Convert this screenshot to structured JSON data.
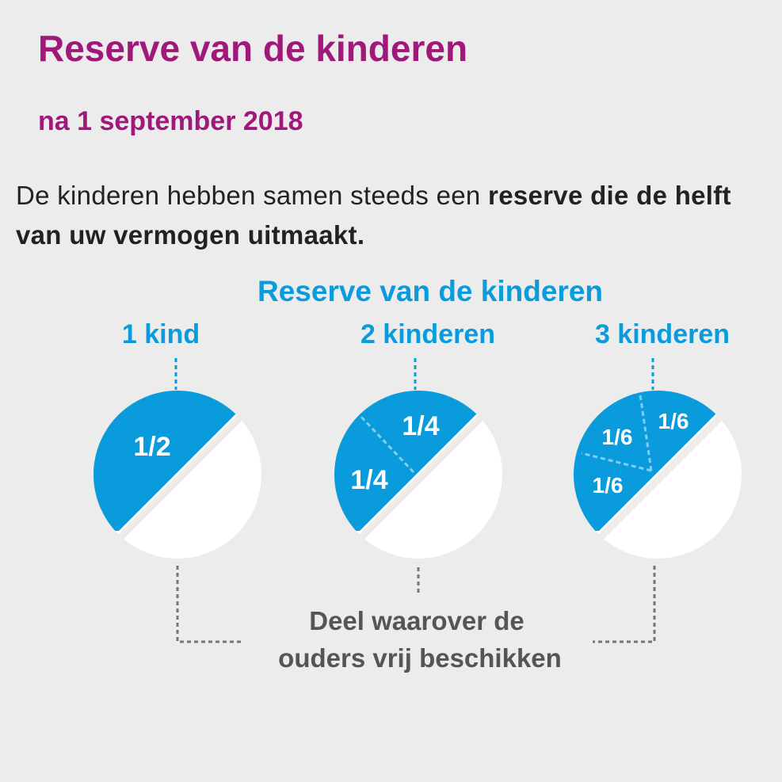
{
  "header": {
    "title": "Reserve van de kinderen",
    "subtitle": "na 1 september 2018"
  },
  "intro": {
    "text_regular": "De kinderen hebben samen steeds een ",
    "text_bold": "reserve die de helft van uw vermogen uitmaakt."
  },
  "diagram": {
    "heading": "Reserve van de kinderen",
    "groups": [
      {
        "label": "1 kind",
        "slices": [
          "1/2"
        ],
        "reserve_fraction": 0.5
      },
      {
        "label": "2 kinderen",
        "slices": [
          "1/4",
          "1/4"
        ],
        "reserve_fraction": 0.5
      },
      {
        "label": "3 kinderen",
        "slices": [
          "1/6",
          "1/6",
          "1/6"
        ],
        "reserve_fraction": 0.5
      }
    ],
    "free_part_label_line1": "Deel waarover de",
    "free_part_label_line2": "ouders vrij beschikken"
  },
  "colors": {
    "title": "#a0197a",
    "accent_blue": "#0a9bdc",
    "free_part": "#ffffff",
    "connector": "#777777",
    "text": "#222222"
  }
}
